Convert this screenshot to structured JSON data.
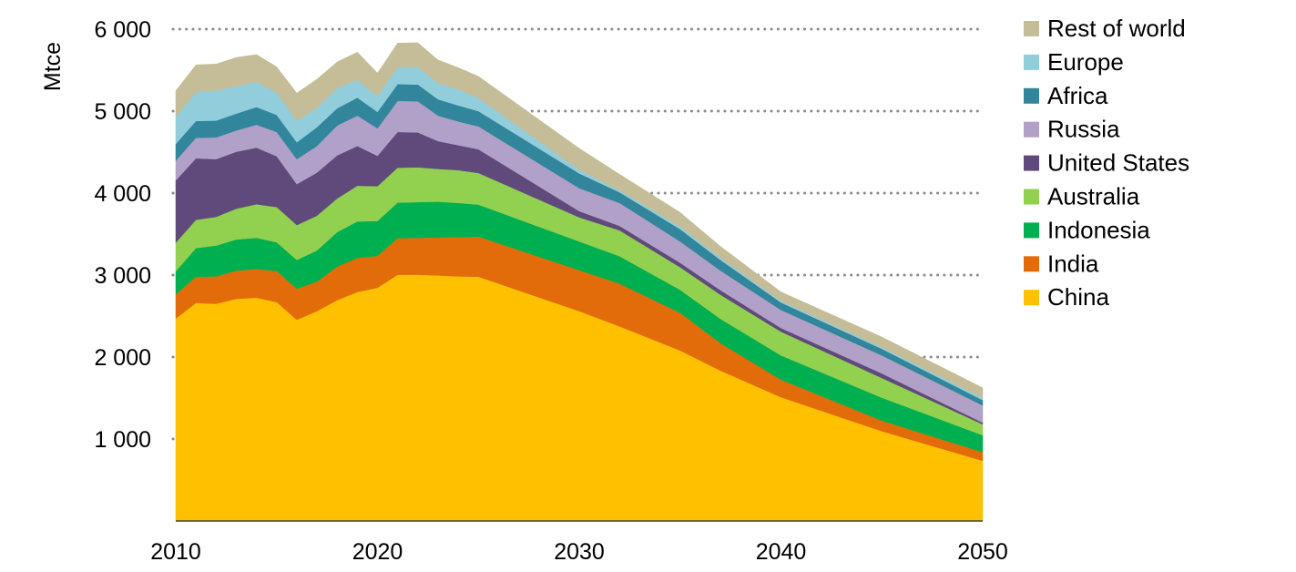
{
  "chart_data": {
    "type": "area",
    "stacked": true,
    "title": "",
    "xlabel": "",
    "ylabel": "Mtce",
    "xlim": [
      2010,
      2050
    ],
    "ylim": [
      0,
      6000
    ],
    "x_ticks": [
      "2010",
      "2020",
      "2030",
      "2040",
      "2050"
    ],
    "y_ticks": [
      "1 000",
      "2 000",
      "3 000",
      "4 000",
      "5 000",
      "6 000"
    ],
    "y_tick_values": [
      1000,
      2000,
      3000,
      4000,
      5000,
      6000
    ],
    "grid": "horizontal dotted",
    "legend_position": "right",
    "x": [
      2010,
      2011,
      2012,
      2013,
      2014,
      2015,
      2016,
      2017,
      2018,
      2019,
      2020,
      2021,
      2022,
      2023,
      2024,
      2025,
      2030,
      2032,
      2035,
      2037,
      2040,
      2045,
      2050
    ],
    "series": [
      {
        "name": "China",
        "color": "#FFC000",
        "values": [
          2470,
          2660,
          2650,
          2710,
          2725,
          2670,
          2455,
          2560,
          2695,
          2795,
          2845,
          3005,
          3005,
          2995,
          2985,
          2980,
          2560,
          2375,
          2080,
          1835,
          1510,
          1095,
          735
        ]
      },
      {
        "name": "India",
        "color": "#E36C0A",
        "values": [
          295,
          320,
          335,
          345,
          350,
          380,
          380,
          360,
          410,
          415,
          390,
          445,
          450,
          465,
          480,
          490,
          500,
          520,
          460,
          335,
          215,
          130,
          105
        ]
      },
      {
        "name": "Indonesia",
        "color": "#00B050",
        "values": [
          280,
          350,
          375,
          380,
          380,
          350,
          350,
          380,
          420,
          445,
          425,
          435,
          435,
          435,
          415,
          390,
          350,
          335,
          280,
          295,
          295,
          280,
          205
        ]
      },
      {
        "name": "Australia",
        "color": "#92D050",
        "values": [
          350,
          345,
          350,
          375,
          410,
          430,
          425,
          425,
          410,
          435,
          425,
          425,
          425,
          400,
          400,
          385,
          295,
          315,
          275,
          295,
          290,
          240,
          135
        ]
      },
      {
        "name": "United States",
        "color": "#604A7B",
        "values": [
          760,
          750,
          705,
          695,
          690,
          620,
          500,
          525,
          525,
          485,
          370,
          435,
          425,
          340,
          305,
          290,
          75,
          55,
          55,
          55,
          45,
          55,
          20
        ]
      },
      {
        "name": "Russia",
        "color": "#B1A0C7",
        "values": [
          240,
          250,
          265,
          260,
          280,
          295,
          305,
          325,
          365,
          370,
          335,
          380,
          380,
          310,
          290,
          280,
          280,
          280,
          260,
          240,
          220,
          220,
          210
        ]
      },
      {
        "name": "Africa",
        "color": "#31869B",
        "values": [
          205,
          205,
          205,
          205,
          215,
          210,
          205,
          230,
          210,
          220,
          200,
          205,
          205,
          200,
          195,
          185,
          180,
          130,
          150,
          130,
          90,
          80,
          65
        ]
      },
      {
        "name": "Europe",
        "color": "#92CDDC",
        "values": [
          335,
          350,
          365,
          335,
          305,
          270,
          265,
          235,
          245,
          215,
          195,
          205,
          215,
          195,
          195,
          160,
          45,
          25,
          30,
          25,
          20,
          20,
          30
        ]
      },
      {
        "name": "Rest of world",
        "color": "#C4BD97",
        "values": [
          315,
          335,
          325,
          350,
          335,
          315,
          335,
          350,
          320,
          340,
          280,
          295,
          295,
          285,
          265,
          265,
          260,
          195,
          175,
          140,
          110,
          125,
          120
        ]
      }
    ]
  }
}
